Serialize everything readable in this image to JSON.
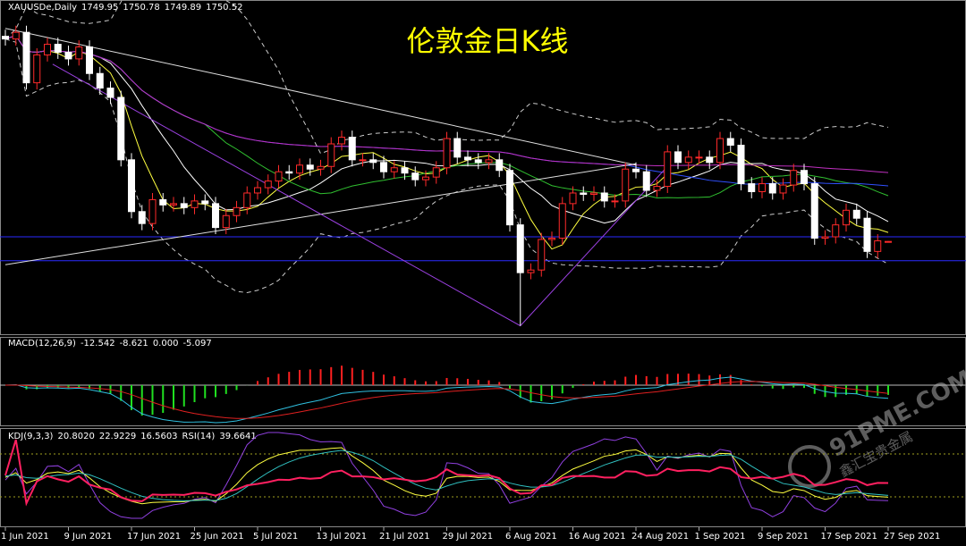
{
  "chart_data": {
    "type": "candlestick",
    "symbol": "XAUUSDe,Daily",
    "ohlc_header": [
      1749.95,
      1750.78,
      1749.89,
      1750.52
    ],
    "title": "伦敦金日K线",
    "categories": [
      "1 Jun 2021",
      null,
      null,
      null,
      null,
      null,
      "9 Jun 2021",
      null,
      null,
      null,
      null,
      null,
      "17 Jun 2021",
      null,
      null,
      null,
      null,
      null,
      "25 Jun 2021",
      null,
      null,
      null,
      null,
      null,
      "5 Jul 2021",
      null,
      null,
      null,
      null,
      null,
      "13 Jul 2021",
      null,
      null,
      null,
      null,
      null,
      "21 Jul 2021",
      null,
      null,
      null,
      null,
      null,
      "29 Jul 2021",
      null,
      null,
      null,
      null,
      null,
      "6 Aug 2021",
      null,
      null,
      null,
      null,
      null,
      "16 Aug 2021",
      null,
      null,
      null,
      null,
      null,
      "24 Aug 2021",
      null,
      null,
      null,
      null,
      null,
      "1 Sep 2021",
      null,
      null,
      null,
      null,
      null,
      "9 Sep 2021",
      null,
      null,
      null,
      null,
      null,
      "17 Sep 2021",
      null,
      null,
      null,
      null,
      null,
      "27 Sep 2021"
    ],
    "open": [
      1905,
      1903,
      1908,
      1870,
      1891,
      1899,
      1893,
      1888,
      1897,
      1877,
      1866,
      1859,
      1812,
      1773,
      1764,
      1782,
      1778,
      1779,
      1776,
      1781,
      1779,
      1761,
      1770,
      1776,
      1787,
      1791,
      1796,
      1803,
      1802,
      1808,
      1805,
      1807,
      1824,
      1829,
      1812,
      1812,
      1810,
      1803,
      1806,
      1802,
      1797,
      1799,
      1806,
      1828,
      1814,
      1812,
      1810,
      1812,
      1804,
      1763,
      1727,
      1729,
      1752,
      1753,
      1779,
      1787,
      1786,
      1787,
      1781,
      1781,
      1805,
      1803,
      1789,
      1792,
      1818,
      1810,
      1814,
      1814,
      1810,
      1828,
      1823,
      1794,
      1788,
      1794,
      1787,
      1793,
      1804,
      1794,
      1753,
      1754,
      1763,
      1774,
      1768,
      1743,
      1749.95
    ],
    "high": [
      1910,
      1913,
      1913,
      1896,
      1904,
      1904,
      1898,
      1902,
      1902,
      1882,
      1871,
      1864,
      1817,
      1778,
      1787,
      1787,
      1784,
      1784,
      1786,
      1786,
      1784,
      1775,
      1781,
      1792,
      1796,
      1801,
      1808,
      1808,
      1813,
      1813,
      1812,
      1829,
      1834,
      1834,
      1817,
      1817,
      1815,
      1811,
      1811,
      1807,
      1804,
      1811,
      1833,
      1833,
      1819,
      1817,
      1817,
      1817,
      1809,
      1768,
      1734,
      1757,
      1758,
      1784,
      1792,
      1792,
      1792,
      1792,
      1786,
      1810,
      1810,
      1808,
      1797,
      1823,
      1823,
      1819,
      1819,
      1819,
      1833,
      1833,
      1828,
      1799,
      1799,
      1799,
      1798,
      1809,
      1809,
      1799,
      1759,
      1768,
      1779,
      1779,
      1773,
      1756,
      1750.78
    ],
    "low": [
      1898,
      1898,
      1865,
      1865,
      1886,
      1888,
      1883,
      1883,
      1872,
      1861,
      1854,
      1807,
      1768,
      1759,
      1759,
      1773,
      1773,
      1771,
      1771,
      1774,
      1756,
      1756,
      1765,
      1771,
      1782,
      1786,
      1791,
      1797,
      1797,
      1800,
      1800,
      1802,
      1819,
      1807,
      1807,
      1805,
      1798,
      1798,
      1797,
      1792,
      1792,
      1794,
      1801,
      1809,
      1807,
      1805,
      1805,
      1799,
      1758,
      1687,
      1722,
      1724,
      1747,
      1748,
      1774,
      1781,
      1781,
      1776,
      1776,
      1776,
      1798,
      1784,
      1784,
      1787,
      1805,
      1805,
      1809,
      1805,
      1805,
      1818,
      1789,
      1783,
      1783,
      1782,
      1782,
      1788,
      1789,
      1748,
      1748,
      1749,
      1758,
      1763,
      1738,
      1738,
      1749.89
    ],
    "close": [
      1903,
      1908,
      1870,
      1891,
      1899,
      1893,
      1888,
      1897,
      1877,
      1866,
      1859,
      1812,
      1773,
      1764,
      1782,
      1778,
      1779,
      1776,
      1781,
      1779,
      1761,
      1770,
      1776,
      1787,
      1791,
      1796,
      1803,
      1802,
      1808,
      1805,
      1807,
      1824,
      1829,
      1812,
      1812,
      1810,
      1803,
      1806,
      1802,
      1797,
      1799,
      1806,
      1828,
      1814,
      1812,
      1810,
      1812,
      1804,
      1763,
      1727,
      1729,
      1752,
      1753,
      1779,
      1787,
      1786,
      1787,
      1781,
      1781,
      1805,
      1803,
      1789,
      1792,
      1818,
      1810,
      1814,
      1814,
      1810,
      1828,
      1823,
      1794,
      1788,
      1794,
      1787,
      1793,
      1804,
      1794,
      1753,
      1754,
      1763,
      1774,
      1768,
      1743,
      1751,
      1750.52
    ],
    "ylim": [
      1682,
      1931
    ],
    "up_color": "#ff2a2a",
    "down_color": "#ffffff",
    "title_color": "#ffff00",
    "hlines": [
      1754,
      1736
    ],
    "hline_color": "#2a2aff",
    "lines": [
      {
        "color": "#e0e0e0",
        "points": [
          [
            0,
            1911
          ],
          [
            60,
            1808
          ]
        ]
      },
      {
        "color": "#e0e0e0",
        "points": [
          [
            0,
            1733
          ],
          [
            60,
            1809
          ]
        ]
      },
      {
        "color": "#9a40e0",
        "points": [
          [
            4.5,
            1884
          ],
          [
            49,
            1687
          ],
          [
            63,
            1807
          ]
        ]
      }
    ],
    "macd": {
      "label": "MACD(12,26,9)",
      "values": [
        -12.542,
        -8.621,
        {
          "value": 0,
          "label": "0.000"
        },
        -5.097
      ]
    },
    "kdj": {
      "label": "KDJ(9,3,3)",
      "values": [
        {
          "value": 20.802,
          "label": "20.8020"
        },
        22.9229,
        16.5603
      ],
      "rsi_label": "RSI(14)",
      "rsi_value": 39.6641,
      "levels": [
        80,
        20
      ]
    }
  },
  "watermark": {
    "site": "91PME.COM",
    "name": "鑫汇宝贵金属"
  }
}
